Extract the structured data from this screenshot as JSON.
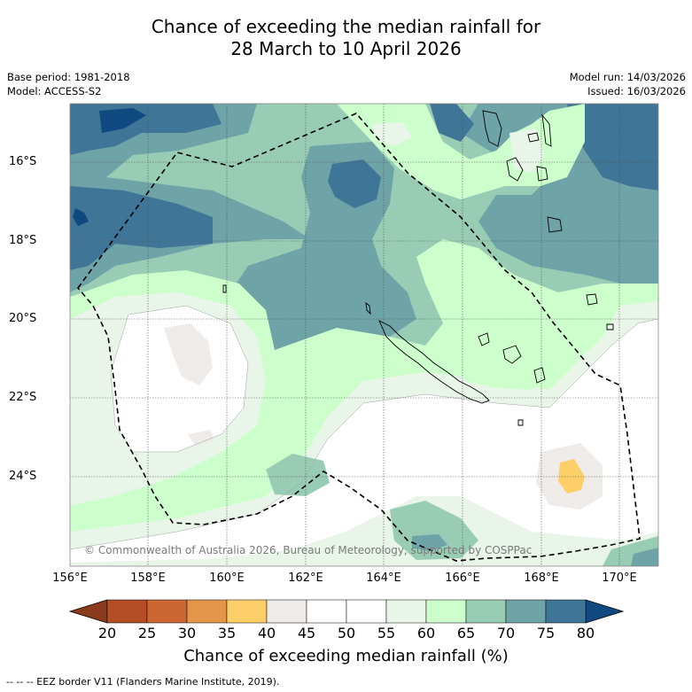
{
  "title": {
    "line1": "Chance of exceeding the median rainfall for",
    "line2": "28 March to 10 April 2026"
  },
  "meta": {
    "base_period": "Base period: 1981-2018",
    "model": "Model: ACCESS-S2",
    "model_run": "Model run: 14/03/2026",
    "issued": "Issued: 16/03/2026"
  },
  "map": {
    "latitude_labels": [
      "16°S",
      "18°S",
      "20°S",
      "22°S",
      "24°S"
    ],
    "longitude_labels": [
      "156°E",
      "158°E",
      "160°E",
      "162°E",
      "164°E",
      "166°E",
      "168°E",
      "170°E"
    ],
    "copyright": "© Commonwealth of Australia 2026, Bureau of Meteorology, supported by COSPPac"
  },
  "colorbar": {
    "ticks": [
      "20",
      "25",
      "30",
      "35",
      "40",
      "45",
      "50",
      "55",
      "60",
      "65",
      "70",
      "75",
      "80"
    ],
    "colors": [
      "#b24d26",
      "#cc6633",
      "#e3954a",
      "#fdcf68",
      "#efebe8",
      "#ffffff",
      "#ffffff",
      "#eaf5e9",
      "#ccffcc",
      "#99ccb4",
      "#6ea3a8",
      "#3f7596"
    ],
    "under_color": "#8b3a1c",
    "over_color": "#104880",
    "label": "Chance of exceeding median rainfall (%)"
  },
  "legend_note": "-- -- -- EEZ border V11 (Flanders Marine Institute, 2019)."
}
